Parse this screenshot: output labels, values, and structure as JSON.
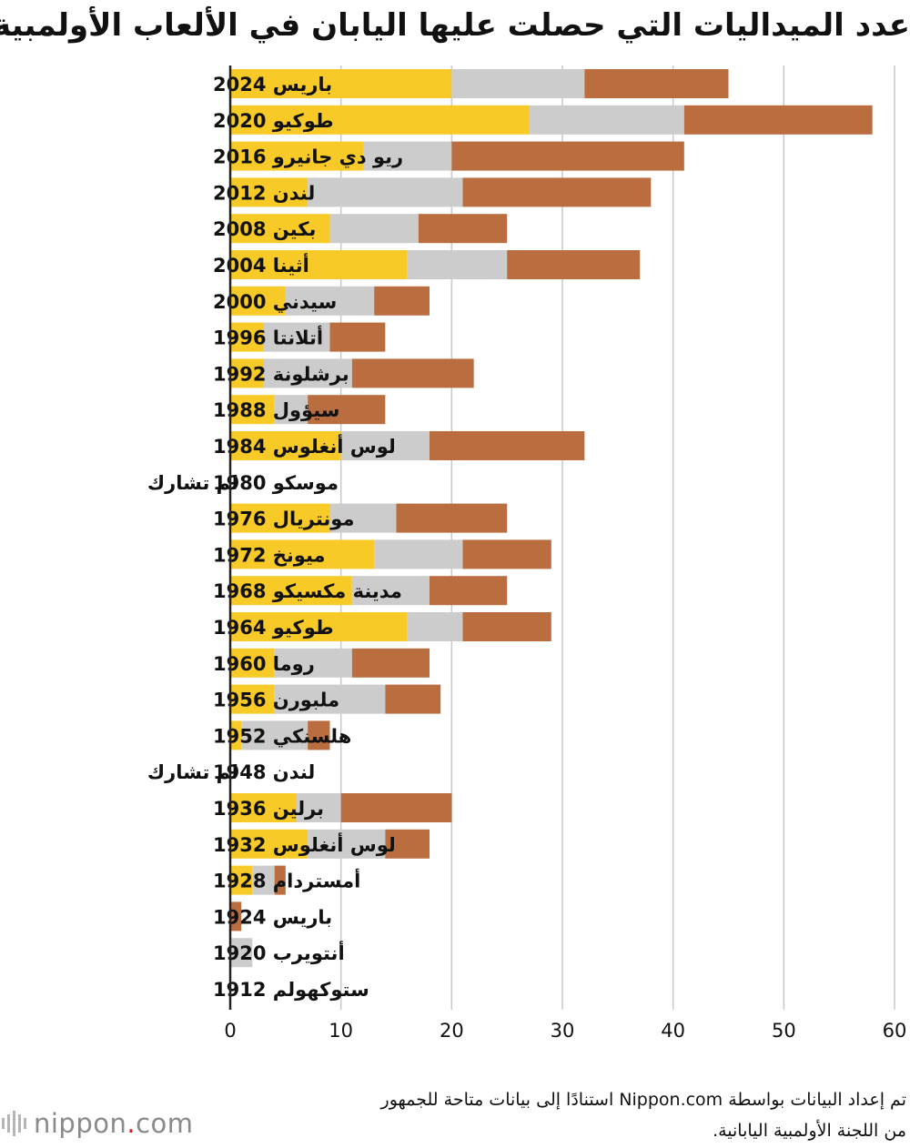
{
  "chart_data": {
    "type": "bar",
    "orientation": "horizontal",
    "stacked": true,
    "title": "عدد الميداليات التي حصلت عليها اليابان في الألعاب الأولمبية الصيفية",
    "categories": [
      "باريس 2024",
      "طوكيو 2020",
      "ريو دي جانيرو  2016",
      "لندن  2012",
      "بكين  2008",
      "أثينا  2004",
      "سيدني 2000",
      "أتلانتا 1996",
      "برشلونة 1992",
      "سيؤول  1988",
      "لوس أنغلوس 1984",
      "موسكو 1980",
      "مونتريال 1976",
      "ميونخ 1972",
      "مدينة مكسيكو 1968",
      "طوكيو  1964",
      "روما  1960",
      "ملبورن 1956",
      "هلسنكي 1952",
      "لندن 1948",
      "برلين 1936",
      "لوس أنغلوس 1932",
      "أمستردام 1928",
      "باريس 1924",
      "أنتويرب 1920",
      "ستوكهولم 1912"
    ],
    "series": [
      {
        "values": [
          20,
          27,
          12,
          7,
          9,
          16,
          5,
          3,
          3,
          4,
          10,
          0,
          9,
          13,
          11,
          16,
          4,
          4,
          1,
          0,
          6,
          7,
          2,
          0,
          0,
          0
        ]
      },
      {
        "values": [
          12,
          14,
          8,
          14,
          8,
          9,
          8,
          6,
          8,
          3,
          8,
          0,
          6,
          8,
          7,
          5,
          7,
          10,
          6,
          0,
          4,
          7,
          2,
          0,
          2,
          0
        ]
      },
      {
        "values": [
          13,
          17,
          21,
          17,
          8,
          12,
          5,
          5,
          11,
          7,
          14,
          0,
          10,
          8,
          7,
          8,
          7,
          5,
          2,
          0,
          10,
          4,
          1,
          1,
          0,
          0
        ]
      }
    ],
    "not_participated_label": "لم تشارك",
    "not_participated_indices": [
      11,
      19
    ],
    "xlim": [
      0,
      60
    ],
    "xticks": [
      "0",
      "10",
      "20",
      "30",
      "40",
      "50",
      "60"
    ],
    "xtick_values": [
      0,
      10,
      20,
      30,
      40,
      50,
      60
    ],
    "grid": "vertical",
    "colors": {
      "gold": "#F8CA27",
      "silver": "#CCCCCC",
      "bronze": "#BA6E40",
      "grid": "#C8C8C8",
      "axis": "#222222"
    }
  },
  "source": {
    "line1": "تم إعداد البيانات  بواسطة Nippon.com استنادًا إلى بيانات متاحة للجمهور",
    "line2": "من اللجنة الأولمبية اليابانية."
  },
  "logo": {
    "name": "nippon",
    "dot": ".",
    "suffix": "com"
  }
}
